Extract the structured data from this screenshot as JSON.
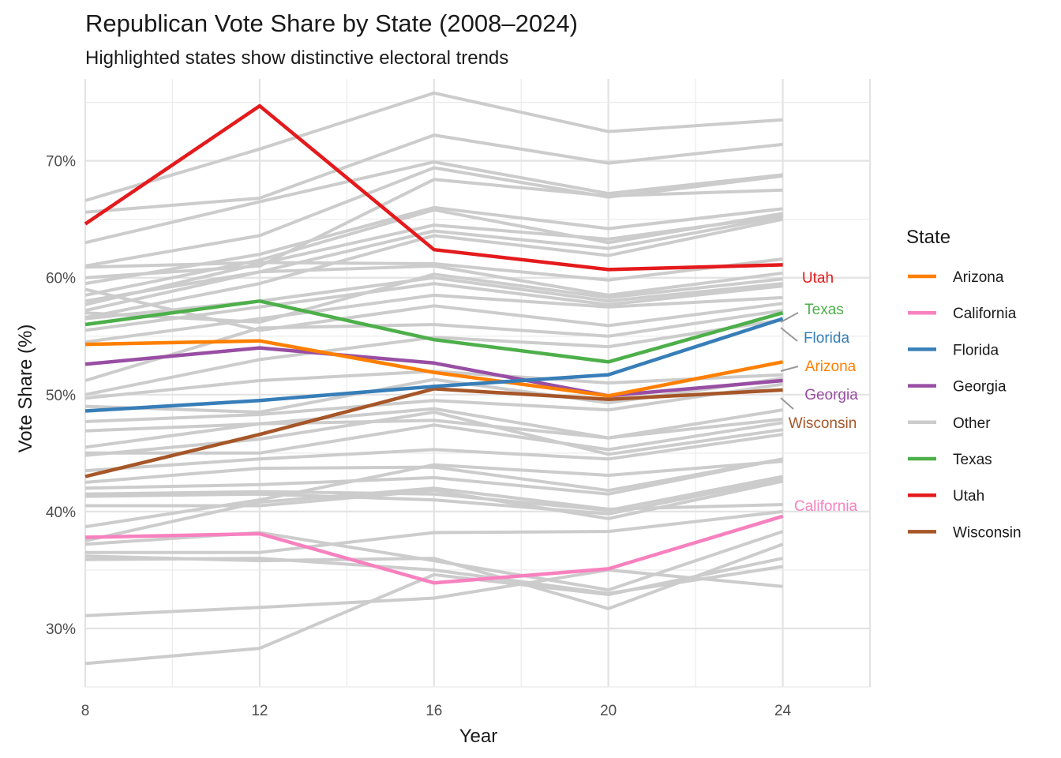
{
  "chart_data": {
    "type": "line",
    "title": "Republican Vote Share by State (2008–2024)",
    "subtitle": "Highlighted states show distinctive electoral trends",
    "xlabel": "Year",
    "ylabel": "Vote Share (%)",
    "x": [
      8,
      12,
      16,
      20,
      24
    ],
    "x_tick_labels": [
      "8",
      "12",
      "16",
      "20",
      "24"
    ],
    "xlim": [
      8,
      26
    ],
    "ylim": [
      25,
      77
    ],
    "y_ticks": [
      30,
      40,
      50,
      60,
      70
    ],
    "y_tick_labels": [
      "30%",
      "40%",
      "50%",
      "60%",
      "70%"
    ],
    "grid": true,
    "legend": {
      "title": "State",
      "position": "right",
      "entries": [
        "Arizona",
        "California",
        "Florida",
        "Georgia",
        "Other",
        "Texas",
        "Utah",
        "Wisconsin"
      ]
    },
    "colors": {
      "Arizona": "#FF7F00",
      "California": "#F781BF",
      "Florida": "#377EB8",
      "Georgia": "#984EA3",
      "Other": "#CCCCCC",
      "Texas": "#4DAF4A",
      "Utah": "#E41A1C",
      "Wisconsin": "#A65628"
    },
    "highlighted_series": [
      {
        "name": "Arizona",
        "values": [
          54.3,
          54.6,
          51.9,
          49.9,
          52.8
        ]
      },
      {
        "name": "California",
        "values": [
          37.8,
          38.1,
          33.9,
          35.1,
          39.6
        ]
      },
      {
        "name": "Florida",
        "values": [
          48.6,
          49.5,
          50.7,
          51.7,
          56.5
        ]
      },
      {
        "name": "Georgia",
        "values": [
          52.6,
          54.0,
          52.7,
          49.9,
          51.2
        ]
      },
      {
        "name": "Texas",
        "values": [
          56.0,
          58.0,
          54.7,
          52.8,
          57.0
        ]
      },
      {
        "name": "Utah",
        "values": [
          64.6,
          74.7,
          62.4,
          60.7,
          61.1
        ]
      },
      {
        "name": "Wisconsin",
        "values": [
          43.0,
          46.6,
          50.5,
          49.6,
          50.4
        ]
      }
    ],
    "other_series": [
      [
        66.6,
        71.0,
        75.8,
        72.5,
        73.5
      ],
      [
        65.6,
        66.8,
        72.2,
        69.8,
        71.4
      ],
      [
        63.0,
        66.5,
        69.9,
        67.2,
        68.8
      ],
      [
        61.0,
        63.6,
        69.4,
        66.9,
        68.7
      ],
      [
        60.0,
        61.0,
        68.4,
        67.0,
        67.5
      ],
      [
        59.5,
        62.0,
        66.0,
        64.2,
        65.9
      ],
      [
        58.5,
        61.5,
        65.8,
        63.0,
        65.5
      ],
      [
        57.7,
        61.2,
        64.5,
        63.3,
        65.3
      ],
      [
        57.2,
        60.5,
        64.0,
        62.5,
        65.2
      ],
      [
        56.6,
        59.5,
        63.6,
        61.9,
        65.0
      ],
      [
        60.9,
        61.3,
        61.2,
        59.8,
        61.6
      ],
      [
        58.0,
        60.5,
        61.0,
        58.5,
        60.4
      ],
      [
        57.0,
        56.2,
        60.3,
        58.3,
        59.9
      ],
      [
        56.5,
        58.0,
        60.0,
        58.0,
        59.5
      ],
      [
        55.5,
        57.5,
        59.5,
        57.7,
        59.3
      ],
      [
        54.5,
        56.5,
        58.5,
        57.5,
        58.3
      ],
      [
        59.0,
        55.5,
        57.6,
        55.9,
        57.8
      ],
      [
        51.2,
        55.7,
        56.0,
        55.0,
        57.2
      ],
      [
        50.0,
        53.0,
        54.9,
        54.1,
        56.4
      ],
      [
        49.7,
        51.2,
        52.0,
        51.0,
        51.7
      ],
      [
        49.0,
        48.5,
        51.3,
        49.3,
        51.4
      ],
      [
        47.7,
        48.3,
        49.5,
        48.7,
        50.9
      ],
      [
        46.9,
        47.5,
        48.8,
        46.3,
        48.7
      ],
      [
        45.5,
        47.5,
        47.8,
        46.3,
        47.9
      ],
      [
        45.0,
        45.0,
        47.4,
        45.3,
        47.6
      ],
      [
        44.8,
        46.2,
        48.5,
        44.9,
        47.0
      ],
      [
        43.5,
        44.5,
        45.3,
        44.5,
        46.6
      ],
      [
        42.5,
        43.7,
        43.8,
        41.8,
        44.5
      ],
      [
        42.0,
        42.3,
        42.9,
        41.5,
        44.5
      ],
      [
        41.5,
        41.7,
        41.5,
        40.1,
        43.0
      ],
      [
        41.3,
        41.5,
        41.0,
        39.8,
        42.8
      ],
      [
        40.5,
        40.5,
        41.8,
        39.4,
        42.6
      ],
      [
        38.7,
        41.0,
        44.0,
        43.1,
        44.3
      ],
      [
        37.5,
        40.8,
        42.0,
        40.2,
        40.6
      ],
      [
        37.2,
        38.2,
        35.8,
        33.3,
        38.3
      ],
      [
        36.5,
        36.5,
        38.2,
        38.3,
        40.0
      ],
      [
        36.2,
        35.8,
        36.0,
        31.7,
        37.2
      ],
      [
        35.9,
        36.0,
        35.0,
        33.0,
        35.3
      ],
      [
        31.1,
        31.8,
        32.6,
        35.0,
        33.6
      ],
      [
        27.0,
        28.3,
        34.6,
        32.9,
        36.0
      ]
    ],
    "end_labels": [
      {
        "series": "Utah",
        "text": "Utah"
      },
      {
        "series": "Texas",
        "text": "Texas"
      },
      {
        "series": "Florida",
        "text": "Florida"
      },
      {
        "series": "Arizona",
        "text": "Arizona"
      },
      {
        "series": "Georgia",
        "text": "Georgia"
      },
      {
        "series": "Wisconsin",
        "text": "Wisconsin"
      },
      {
        "series": "California",
        "text": "California"
      }
    ]
  }
}
